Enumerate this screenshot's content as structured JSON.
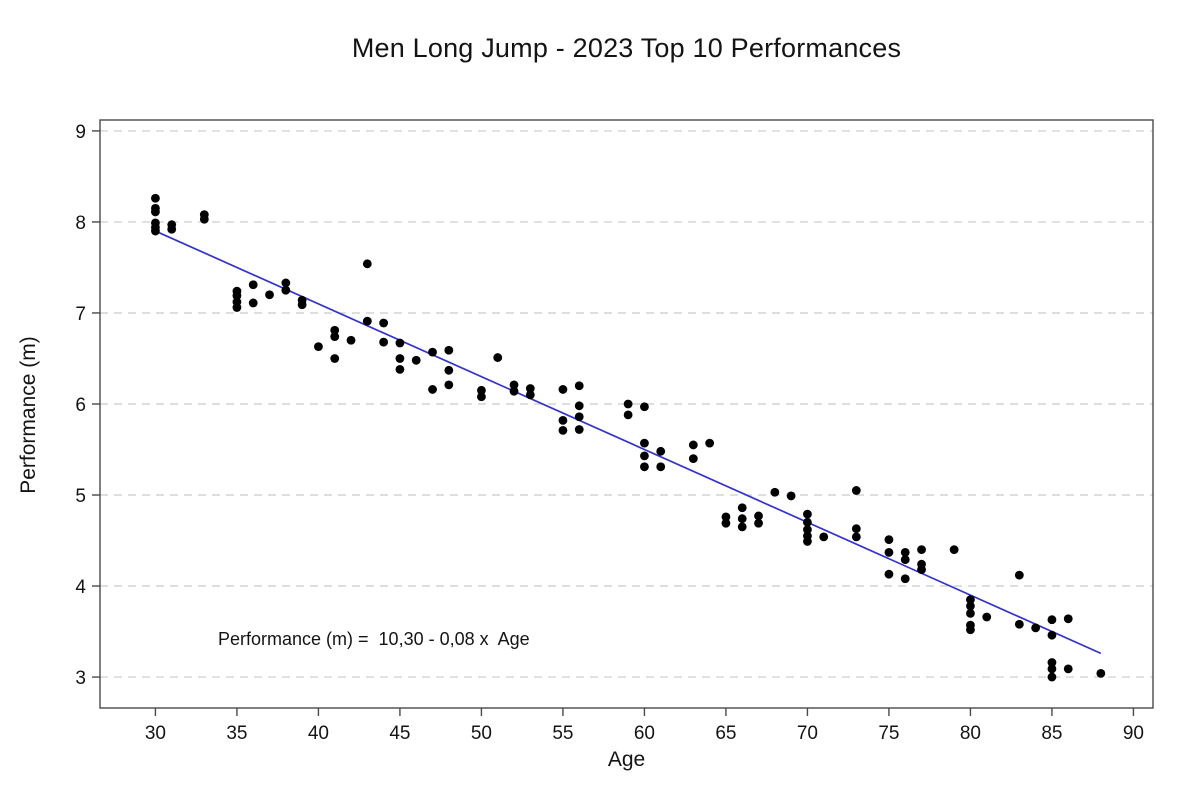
{
  "chart_data": {
    "type": "scatter",
    "title": "Men Long Jump - 2023 Top 10 Performances",
    "xlabel": "Age",
    "ylabel": "Performance (m)",
    "annotation": "Performance (m) =  10,30 - 0,08 x  Age",
    "xlim": [
      26.6,
      91.2
    ],
    "ylim": [
      2.66,
      9.12
    ],
    "xticks": [
      30,
      35,
      40,
      45,
      50,
      55,
      60,
      65,
      70,
      75,
      80,
      85,
      90
    ],
    "yticks": [
      3,
      4,
      5,
      6,
      7,
      8,
      9
    ],
    "grid": "horizontal-dashed",
    "legend": "none",
    "point_color": "#000000",
    "line_color": "#3333cc",
    "regression": {
      "intercept": 10.3,
      "slope": -0.08,
      "x_start": 30,
      "x_end": 88
    },
    "points": [
      [
        30,
        8.26
      ],
      [
        30,
        8.15
      ],
      [
        30,
        8.11
      ],
      [
        30,
        7.99
      ],
      [
        30,
        7.94
      ],
      [
        30,
        7.9
      ],
      [
        31,
        7.97
      ],
      [
        31,
        7.92
      ],
      [
        33,
        8.08
      ],
      [
        33,
        8.03
      ],
      [
        35,
        7.24
      ],
      [
        35,
        7.19
      ],
      [
        35,
        7.12
      ],
      [
        35,
        7.06
      ],
      [
        36,
        7.31
      ],
      [
        36,
        7.11
      ],
      [
        37,
        7.2
      ],
      [
        38,
        7.33
      ],
      [
        38,
        7.25
      ],
      [
        39,
        7.14
      ],
      [
        39,
        7.09
      ],
      [
        40,
        6.63
      ],
      [
        41,
        6.81
      ],
      [
        41,
        6.74
      ],
      [
        41,
        6.5
      ],
      [
        42,
        6.7
      ],
      [
        43,
        7.54
      ],
      [
        43,
        6.91
      ],
      [
        44,
        6.89
      ],
      [
        44,
        6.68
      ],
      [
        45,
        6.67
      ],
      [
        45,
        6.5
      ],
      [
        45,
        6.38
      ],
      [
        46,
        6.48
      ],
      [
        47,
        6.57
      ],
      [
        47,
        6.16
      ],
      [
        48,
        6.59
      ],
      [
        48,
        6.37
      ],
      [
        48,
        6.21
      ],
      [
        50,
        6.15
      ],
      [
        50,
        6.08
      ],
      [
        51,
        6.51
      ],
      [
        52,
        6.21
      ],
      [
        52,
        6.14
      ],
      [
        53,
        6.17
      ],
      [
        53,
        6.1
      ],
      [
        55,
        6.16
      ],
      [
        55,
        5.82
      ],
      [
        55,
        5.71
      ],
      [
        56,
        6.2
      ],
      [
        56,
        5.98
      ],
      [
        56,
        5.86
      ],
      [
        56,
        5.72
      ],
      [
        59,
        6.0
      ],
      [
        59,
        5.88
      ],
      [
        60,
        5.97
      ],
      [
        60,
        5.57
      ],
      [
        60,
        5.43
      ],
      [
        60,
        5.31
      ],
      [
        61,
        5.48
      ],
      [
        61,
        5.31
      ],
      [
        63,
        5.55
      ],
      [
        63,
        5.4
      ],
      [
        64,
        5.57
      ],
      [
        65,
        4.76
      ],
      [
        65,
        4.69
      ],
      [
        66,
        4.86
      ],
      [
        66,
        4.74
      ],
      [
        66,
        4.65
      ],
      [
        67,
        4.77
      ],
      [
        67,
        4.69
      ],
      [
        68,
        5.03
      ],
      [
        69,
        4.99
      ],
      [
        70,
        4.79
      ],
      [
        70,
        4.7
      ],
      [
        70,
        4.62
      ],
      [
        70,
        4.55
      ],
      [
        70,
        4.49
      ],
      [
        71,
        4.54
      ],
      [
        73,
        5.05
      ],
      [
        73,
        4.63
      ],
      [
        73,
        4.54
      ],
      [
        75,
        4.51
      ],
      [
        75,
        4.37
      ],
      [
        75,
        4.13
      ],
      [
        76,
        4.37
      ],
      [
        76,
        4.29
      ],
      [
        76,
        4.08
      ],
      [
        77,
        4.4
      ],
      [
        77,
        4.24
      ],
      [
        77,
        4.18
      ],
      [
        79,
        4.4
      ],
      [
        80,
        3.85
      ],
      [
        80,
        3.78
      ],
      [
        80,
        3.7
      ],
      [
        80,
        3.57
      ],
      [
        80,
        3.52
      ],
      [
        81,
        3.66
      ],
      [
        83,
        4.12
      ],
      [
        83,
        3.58
      ],
      [
        84,
        3.54
      ],
      [
        85,
        3.63
      ],
      [
        85,
        3.46
      ],
      [
        85,
        3.16
      ],
      [
        85,
        3.09
      ],
      [
        85,
        3.0
      ],
      [
        86,
        3.64
      ],
      [
        86,
        3.09
      ],
      [
        88,
        3.04
      ]
    ]
  }
}
